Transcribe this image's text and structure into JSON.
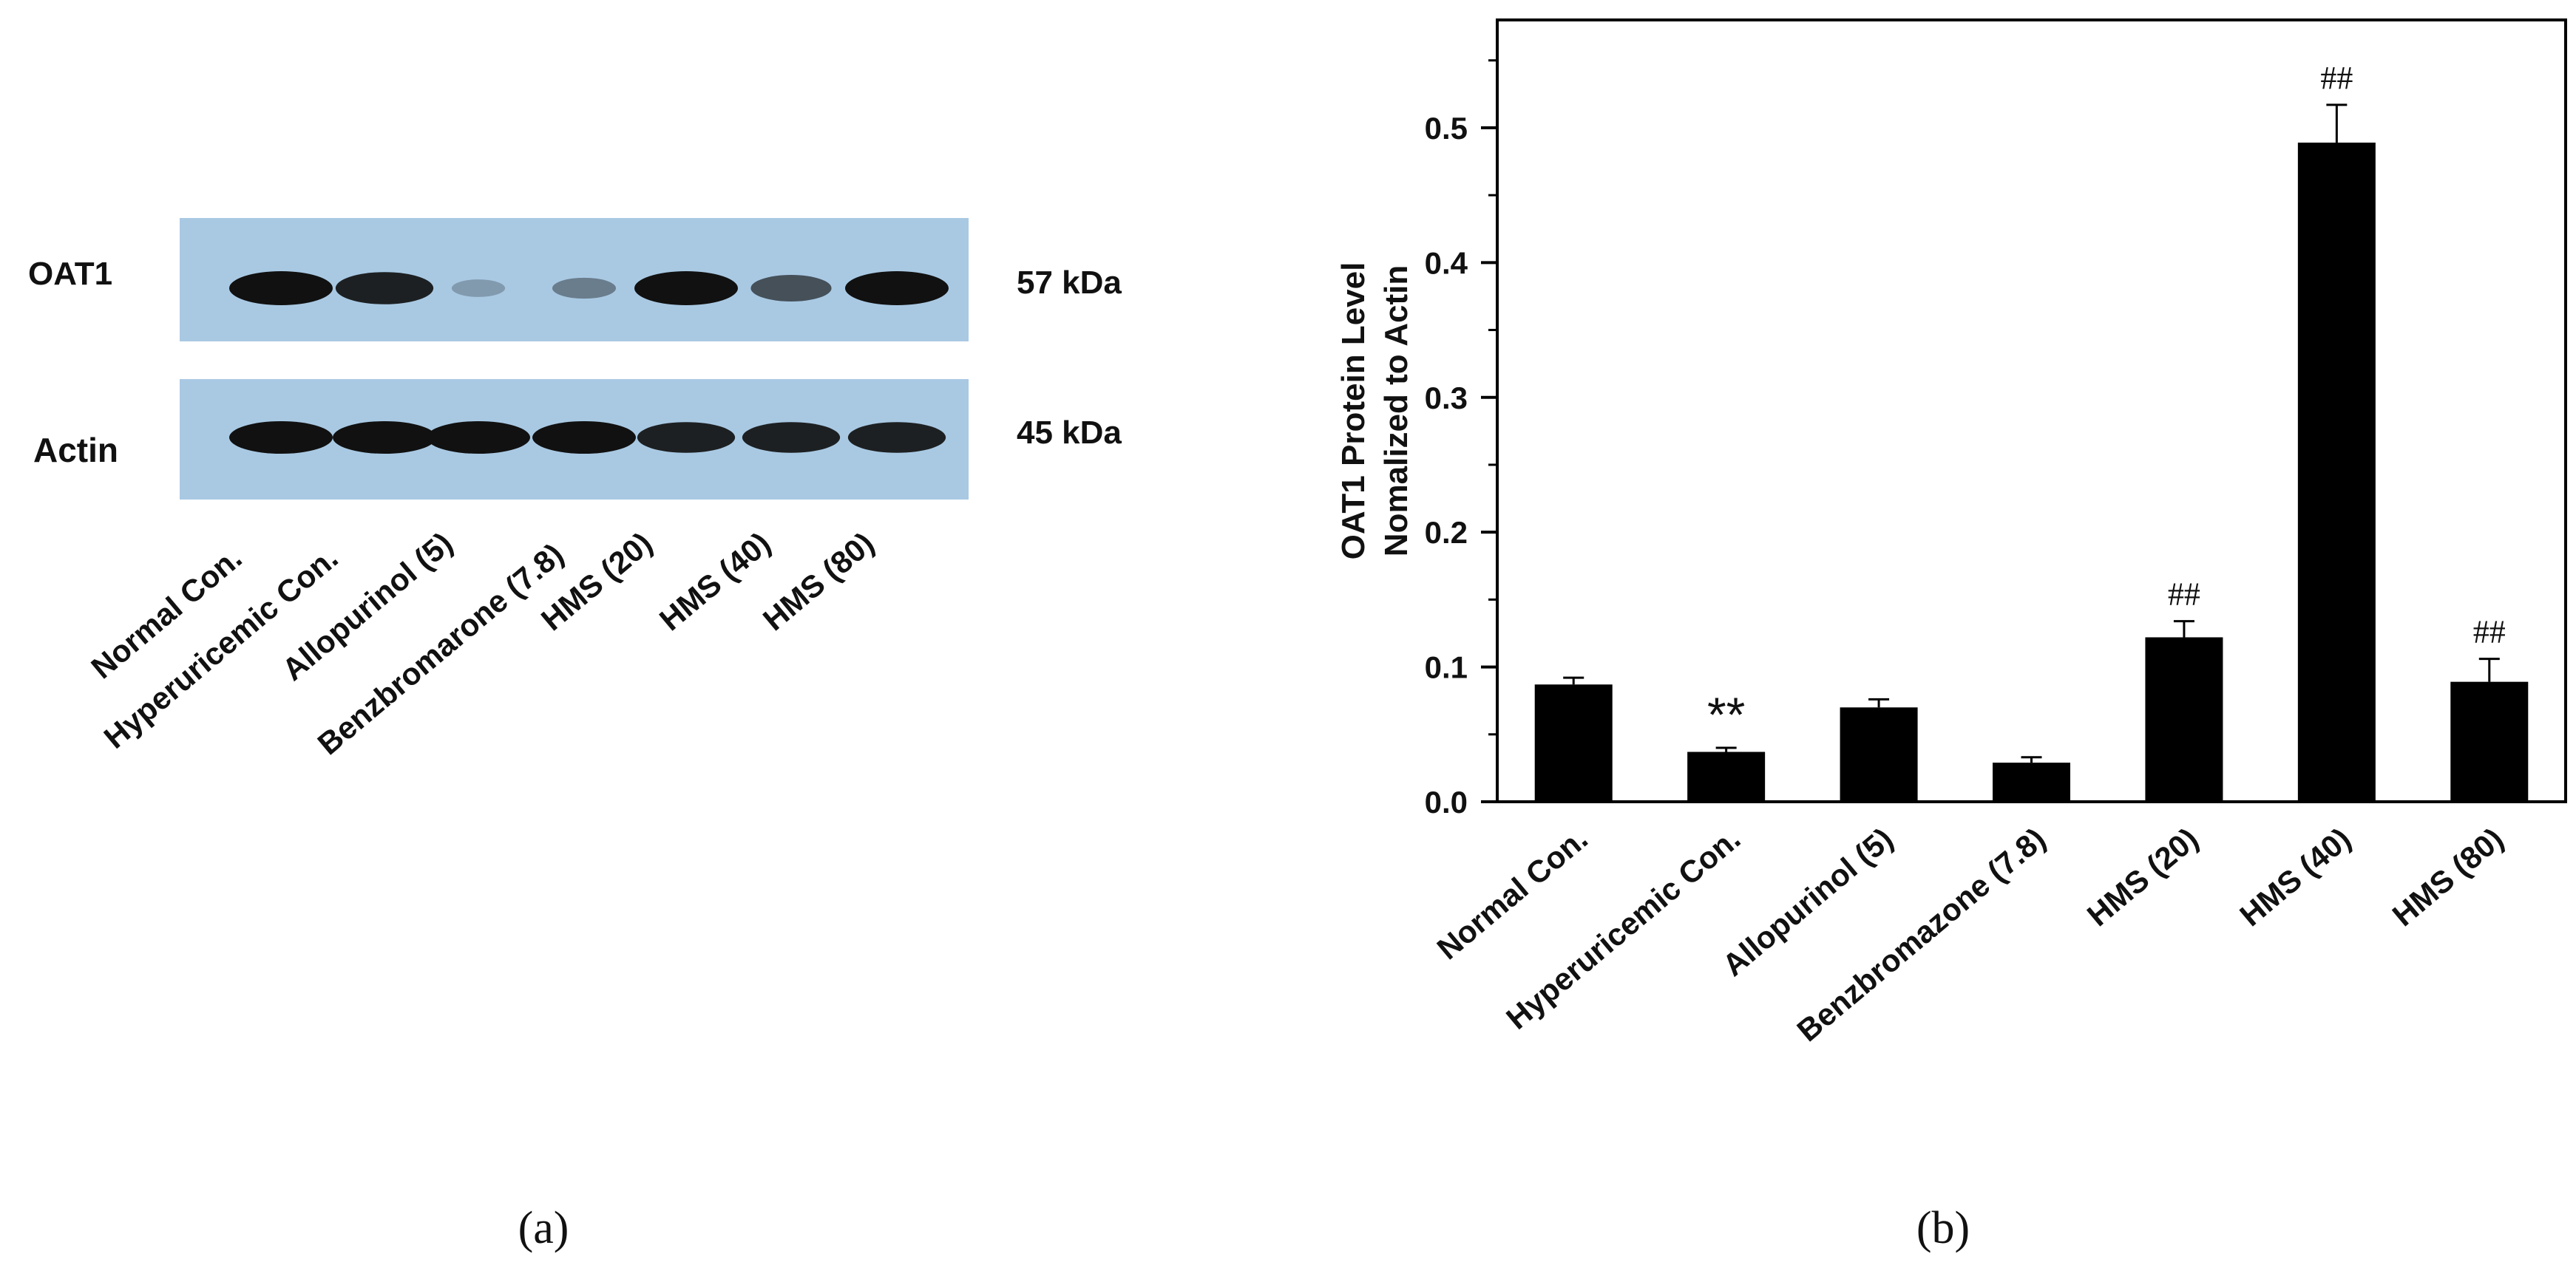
{
  "panel_a": {
    "caption": "(a)",
    "blots": [
      {
        "label": "OAT1",
        "size": "57 kDa",
        "intensities": [
          1.0,
          0.9,
          0.12,
          0.3,
          1.0,
          0.6,
          1.0
        ]
      },
      {
        "label": "Actin",
        "size": "45 kDa",
        "intensities": [
          1.0,
          1.0,
          1.0,
          1.0,
          0.9,
          0.9,
          0.9
        ]
      }
    ],
    "lane_labels": [
      "Normal Con.",
      "Hyperuricemic Con.",
      "Allopurinol  (5)",
      "Benzbromarone (7.8)",
      "HMS (20)",
      "HMS (40)",
      "HMS (80)"
    ]
  },
  "panel_b": {
    "caption": "(b)"
  },
  "chart_data": {
    "type": "bar",
    "title": "",
    "xlabel": "",
    "ylabel": [
      "OAT1 Protein Level",
      "Nomalized to Actin"
    ],
    "categories": [
      "Normal Con.",
      "Hyperuricemic Con.",
      "Allopurinol (5)",
      "Benzbromazone (7.8)",
      "HMS (20)",
      "HMS (40)",
      "HMS (80)"
    ],
    "values": [
      0.087,
      0.037,
      0.07,
      0.029,
      0.122,
      0.489,
      0.089
    ],
    "errors": [
      0.005,
      0.003,
      0.006,
      0.004,
      0.012,
      0.028,
      0.017
    ],
    "annotations": [
      "",
      "**",
      "",
      "",
      "##",
      "##",
      "##"
    ],
    "ylim": [
      0,
      0.58
    ],
    "yticks": [
      0.0,
      0.1,
      0.2,
      0.3,
      0.4,
      0.5
    ],
    "ytick_labels": [
      "0.0",
      "0.1",
      "0.2",
      "0.3",
      "0.4",
      "0.5"
    ],
    "bar_color": "#000000",
    "grid": false
  }
}
